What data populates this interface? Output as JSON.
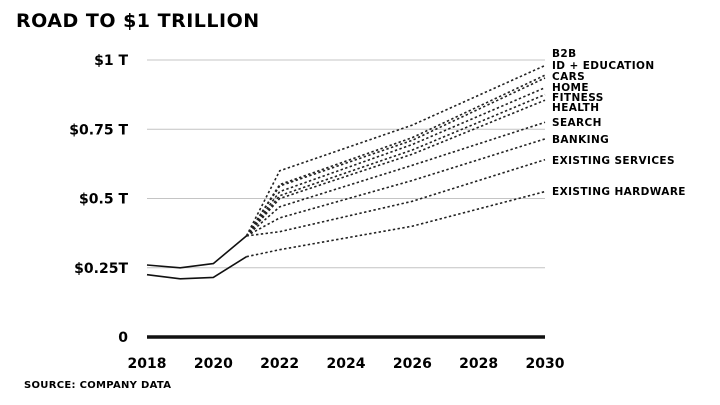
{
  "chart_data": {
    "type": "line",
    "title": "ROAD TO $1 TRILLION",
    "source": "SOURCE: COMPANY DATA",
    "x_ticks": [
      2018,
      2020,
      2022,
      2024,
      2026,
      2028,
      2030
    ],
    "xlim": [
      2018,
      2030
    ],
    "ylim": [
      0,
      1
    ],
    "y_ticks": [
      {
        "value": 0,
        "label": "0"
      },
      {
        "value": 0.25,
        "label": "$0.25T"
      },
      {
        "value": 0.5,
        "label": "$0.5 T"
      },
      {
        "value": 0.75,
        "label": "$0.75 T"
      },
      {
        "value": 1,
        "label": "$1 T"
      }
    ],
    "grid": true,
    "historical": [
      {
        "x": [
          2018,
          2019,
          2020,
          2021
        ],
        "y": [
          0.26,
          0.25,
          0.265,
          0.365
        ]
      },
      {
        "x": [
          2018,
          2019,
          2020,
          2021
        ],
        "y": [
          0.225,
          0.21,
          0.215,
          0.29
        ]
      }
    ],
    "series": [
      {
        "name": "B2B",
        "x": [
          2021,
          2022,
          2026,
          2030
        ],
        "y": [
          0.365,
          0.6,
          0.765,
          0.98
        ]
      },
      {
        "name": "ID + EDUCATION",
        "x": [
          2021,
          2022,
          2026,
          2030
        ],
        "y": [
          0.365,
          0.55,
          0.72,
          0.945
        ]
      },
      {
        "name": "CARS",
        "x": [
          2021,
          2022,
          2026,
          2030
        ],
        "y": [
          0.365,
          0.545,
          0.71,
          0.935
        ]
      },
      {
        "name": "HOME",
        "x": [
          2021,
          2022,
          2026,
          2030
        ],
        "y": [
          0.365,
          0.525,
          0.695,
          0.9
        ]
      },
      {
        "name": "FITNESS",
        "x": [
          2021,
          2022,
          2026,
          2030
        ],
        "y": [
          0.365,
          0.51,
          0.675,
          0.875
        ]
      },
      {
        "name": "HEALTH",
        "x": [
          2021,
          2022,
          2026,
          2030
        ],
        "y": [
          0.365,
          0.5,
          0.66,
          0.855
        ]
      },
      {
        "name": "SEARCH",
        "x": [
          2021,
          2022,
          2026,
          2030
        ],
        "y": [
          0.365,
          0.47,
          0.62,
          0.775
        ]
      },
      {
        "name": "BANKING",
        "x": [
          2021,
          2022,
          2026,
          2030
        ],
        "y": [
          0.365,
          0.43,
          0.565,
          0.715
        ]
      },
      {
        "name": "EXISTING SERVICES",
        "x": [
          2021,
          2022,
          2026,
          2030
        ],
        "y": [
          0.365,
          0.38,
          0.49,
          0.64
        ]
      },
      {
        "name": "EXISTING HARDWARE",
        "x": [
          2021,
          2022,
          2026,
          2030
        ],
        "y": [
          0.29,
          0.315,
          0.4,
          0.525
        ]
      }
    ]
  }
}
